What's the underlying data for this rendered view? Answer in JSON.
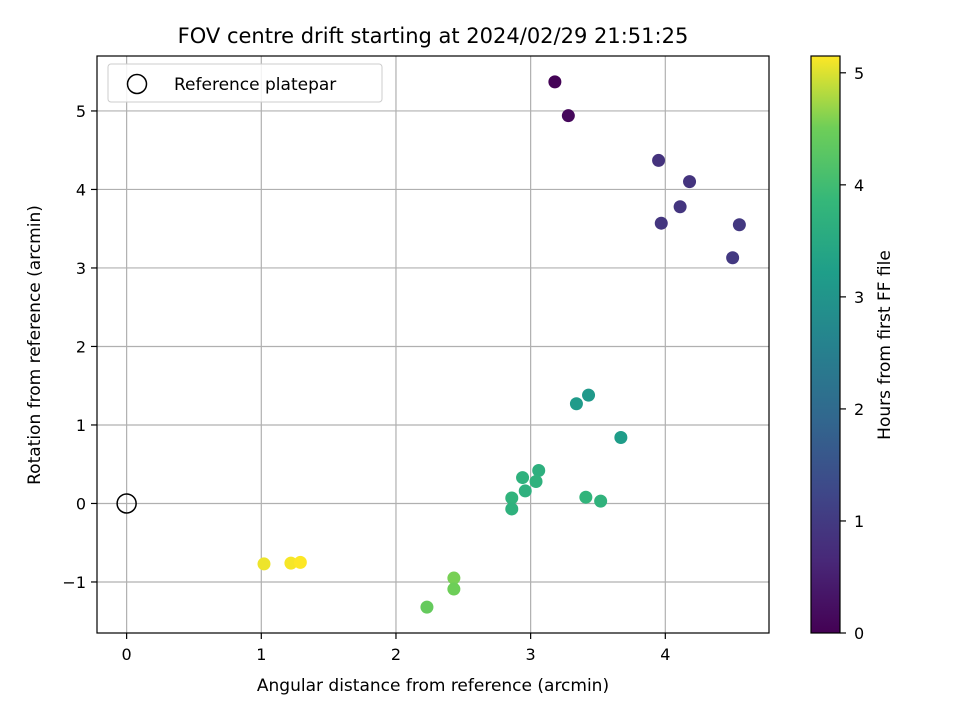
{
  "chart_data": {
    "type": "scatter",
    "title": "FOV centre drift starting at 2024/02/29 21:51:25",
    "xlabel": "Angular distance from reference (arcmin)",
    "ylabel": "Rotation from reference (arcmin)",
    "xlim": [
      -0.22,
      4.77
    ],
    "ylim": [
      -1.65,
      5.7
    ],
    "xticks": [
      0,
      1,
      2,
      3,
      4
    ],
    "yticks": [
      -1,
      0,
      1,
      2,
      3,
      4,
      5
    ],
    "grid": true,
    "legend": {
      "position": "top-left",
      "entries": [
        "Reference platepar"
      ]
    },
    "reference_point": {
      "x": 0,
      "y": 0
    },
    "colorbar": {
      "label": "Hours from first FF file",
      "colormap": "viridis",
      "range": [
        0,
        5.15
      ],
      "ticks": [
        0,
        1,
        2,
        3,
        4,
        5
      ]
    },
    "points": [
      {
        "x": 3.18,
        "y": 5.37,
        "c": 0.03
      },
      {
        "x": 3.28,
        "y": 4.94,
        "c": 0.12
      },
      {
        "x": 3.95,
        "y": 4.37,
        "c": 0.85
      },
      {
        "x": 4.18,
        "y": 4.1,
        "c": 0.88
      },
      {
        "x": 4.11,
        "y": 3.78,
        "c": 0.9
      },
      {
        "x": 3.97,
        "y": 3.57,
        "c": 0.92
      },
      {
        "x": 4.55,
        "y": 3.55,
        "c": 0.95
      },
      {
        "x": 4.5,
        "y": 3.13,
        "c": 0.98
      },
      {
        "x": 3.43,
        "y": 1.38,
        "c": 3.1
      },
      {
        "x": 3.34,
        "y": 1.27,
        "c": 3.15
      },
      {
        "x": 3.67,
        "y": 0.84,
        "c": 3.2
      },
      {
        "x": 3.06,
        "y": 0.42,
        "c": 3.65
      },
      {
        "x": 2.94,
        "y": 0.33,
        "c": 3.7
      },
      {
        "x": 3.04,
        "y": 0.28,
        "c": 3.72
      },
      {
        "x": 2.96,
        "y": 0.16,
        "c": 3.68
      },
      {
        "x": 2.86,
        "y": 0.07,
        "c": 3.75
      },
      {
        "x": 2.86,
        "y": -0.07,
        "c": 3.7
      },
      {
        "x": 3.41,
        "y": 0.08,
        "c": 3.78
      },
      {
        "x": 3.52,
        "y": 0.03,
        "c": 3.74
      },
      {
        "x": 2.43,
        "y": -0.95,
        "c": 4.55
      },
      {
        "x": 2.43,
        "y": -1.09,
        "c": 4.5
      },
      {
        "x": 2.23,
        "y": -1.32,
        "c": 4.4
      },
      {
        "x": 1.02,
        "y": -0.77,
        "c": 5.08
      },
      {
        "x": 1.22,
        "y": -0.76,
        "c": 5.12
      },
      {
        "x": 1.29,
        "y": -0.75,
        "c": 5.15
      }
    ]
  }
}
